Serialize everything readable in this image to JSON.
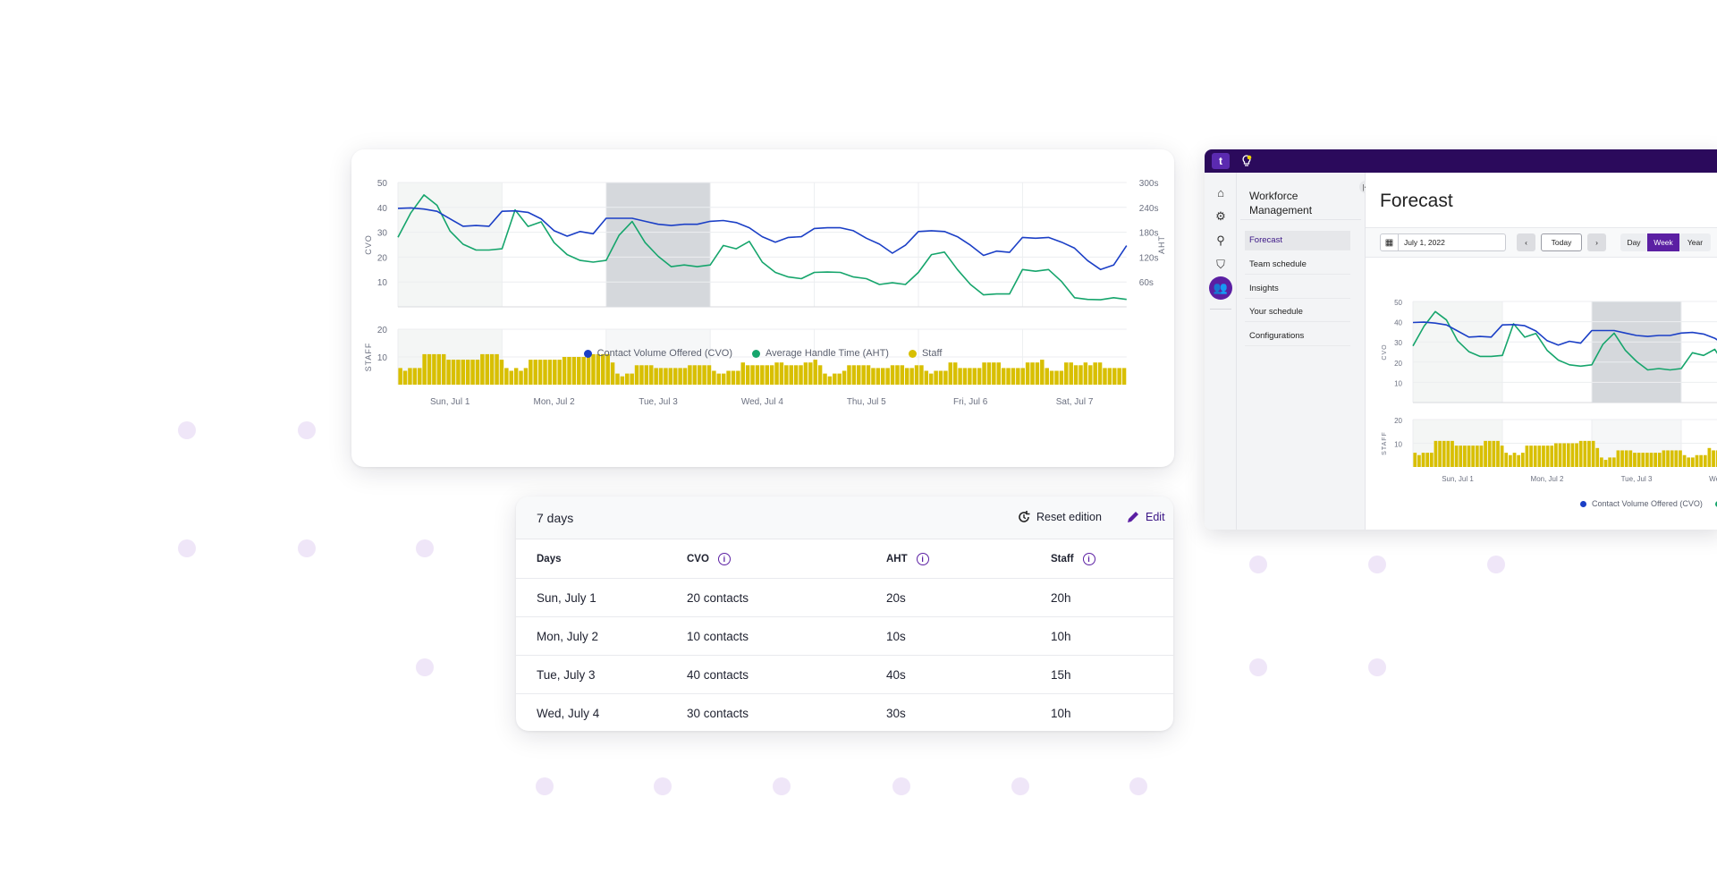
{
  "colors": {
    "cvo": "#1b3fc6",
    "aht": "#16a56c",
    "staff": "#d8bf00",
    "accent": "#5b1fa3",
    "topbar": "#2b0a5c",
    "dots": "#efe6f8"
  },
  "chart_data": {
    "type": "line+bar",
    "x_ticks": [
      "Sun, Jul 1",
      "Mon, Jul 2",
      "Tue, Jul 3",
      "Wed, Jul 4",
      "Thu, Jul 5",
      "Fri, Jul 6",
      "Sat, Jul 7"
    ],
    "x_unit": "hours from Sun, Jul 1 00:00",
    "highlighted_days": [
      "Sun, Jul 1",
      "Tue, Jul 3"
    ],
    "left_axis": {
      "label": "CVO",
      "ticks": [
        10,
        20,
        30,
        40,
        50
      ],
      "range": [
        0,
        50
      ]
    },
    "right_axis": {
      "label": "AHT",
      "ticks": [
        "60s",
        "120s",
        "180s",
        "240s",
        "300s"
      ],
      "range_seconds": [
        0,
        300
      ]
    },
    "staff_axis": {
      "label": "STAFF",
      "ticks": [
        10,
        20
      ],
      "range": [
        0,
        20
      ]
    },
    "grid": true,
    "legend_position": "bottom",
    "series": [
      {
        "name": "Contact Volume Offered (CVO)",
        "axis": "left",
        "step_hours": 3,
        "values": [
          39.6,
          39.8,
          39.3,
          38.4,
          35.4,
          32.4,
          32.7,
          32.4,
          38.4,
          38.6,
          38.0,
          35.4,
          30.6,
          28.4,
          30.3,
          29.4,
          35.6,
          35.6,
          35.6,
          34.4,
          33.2,
          32.7,
          33.2,
          33.2,
          34.4,
          34.7,
          33.9,
          31.8,
          28.2,
          26.0,
          27.9,
          28.2,
          31.5,
          31.8,
          31.8,
          30.6,
          27.6,
          25.2,
          21.6,
          24.8,
          30.3,
          30.6,
          30.3,
          28.2,
          24.8,
          20.7,
          22.4,
          21.9,
          27.9,
          27.6,
          27.9,
          26.0,
          23.6,
          18.6,
          15.0,
          16.8,
          24.6
        ]
      },
      {
        "name": "Average Handle Time (AHT)",
        "axis": "right",
        "step_hours": 3,
        "values": [
          168,
          227,
          270,
          245,
          183,
          151,
          137,
          137,
          140,
          234,
          194,
          205,
          155,
          126,
          112,
          108,
          112,
          173,
          206,
          155,
          122,
          97,
          101,
          97,
          101,
          148,
          140,
          158,
          108,
          83,
          72,
          68,
          83,
          84,
          83,
          72,
          68,
          54,
          58,
          54,
          83,
          126,
          132,
          90,
          54,
          29,
          31,
          31,
          90,
          86,
          90,
          61,
          22,
          18,
          17,
          22,
          18
        ]
      },
      {
        "name": "Staff",
        "axis": "staff",
        "type": "bar",
        "values": [
          6,
          5,
          6,
          6,
          6,
          11,
          11,
          11,
          11,
          11,
          9,
          9,
          9,
          9,
          9,
          9,
          9,
          11,
          11,
          11,
          11,
          9,
          6,
          5,
          6,
          5,
          6,
          9,
          9,
          9,
          9,
          9,
          9,
          9,
          10,
          10,
          10,
          10,
          10,
          10,
          11,
          11,
          11,
          11,
          8,
          4,
          3,
          4,
          4,
          7,
          7,
          7,
          7,
          6,
          6,
          6,
          6,
          6,
          6,
          6,
          7,
          7,
          7,
          7,
          7,
          5,
          4,
          4,
          5,
          5,
          5,
          8,
          7,
          7,
          7,
          7,
          7,
          7,
          8,
          8,
          7,
          7,
          7,
          7,
          8,
          8,
          9,
          7,
          4,
          3,
          4,
          4,
          5,
          7,
          7,
          7,
          7,
          7,
          6,
          6,
          6,
          6,
          7,
          7,
          7,
          6,
          6,
          7,
          7,
          5,
          4,
          5,
          5,
          5,
          8,
          8,
          6,
          6,
          6,
          6,
          6,
          8,
          8,
          8,
          8,
          6,
          6,
          6,
          6,
          6,
          8,
          8,
          8,
          9,
          6,
          5,
          5,
          5,
          8,
          8,
          7,
          7,
          8,
          7,
          8,
          8,
          6,
          6,
          6,
          6,
          6
        ]
      }
    ]
  },
  "legend": {
    "cvo": "Contact Volume Offered (CVO)",
    "aht": "Average Handle Time (AHT)",
    "staff": "Staff"
  },
  "table": {
    "title": "7 days",
    "reset_label": "Reset edition",
    "edit_label": "Edit",
    "columns": [
      "Days",
      "CVO",
      "AHT",
      "Staff"
    ],
    "rows": [
      [
        "Sun, July 1",
        "20 contacts",
        "20s",
        "20h"
      ],
      [
        "Mon, July 2",
        "10 contacts",
        "10s",
        "10h"
      ],
      [
        "Tue, July 3",
        "40 contacts",
        "40s",
        "15h"
      ],
      [
        "Wed, July 4",
        "30 contacts",
        "30s",
        "10h"
      ]
    ]
  },
  "app": {
    "logo": "t",
    "sidebar_title": "Workforce Management",
    "nav": [
      "Forecast",
      "Team schedule",
      "Insights",
      "Your schedule",
      "Configurations"
    ],
    "active_nav": "Forecast",
    "page_title": "Forecast",
    "date_value": "July 1, 2022",
    "today_label": "Today",
    "views": [
      "Day",
      "Week",
      "Year"
    ],
    "active_view": "Week",
    "rail_icons": [
      "home-icon",
      "gear-icon",
      "workflow-icon",
      "shield-icon",
      "team-icon"
    ]
  }
}
